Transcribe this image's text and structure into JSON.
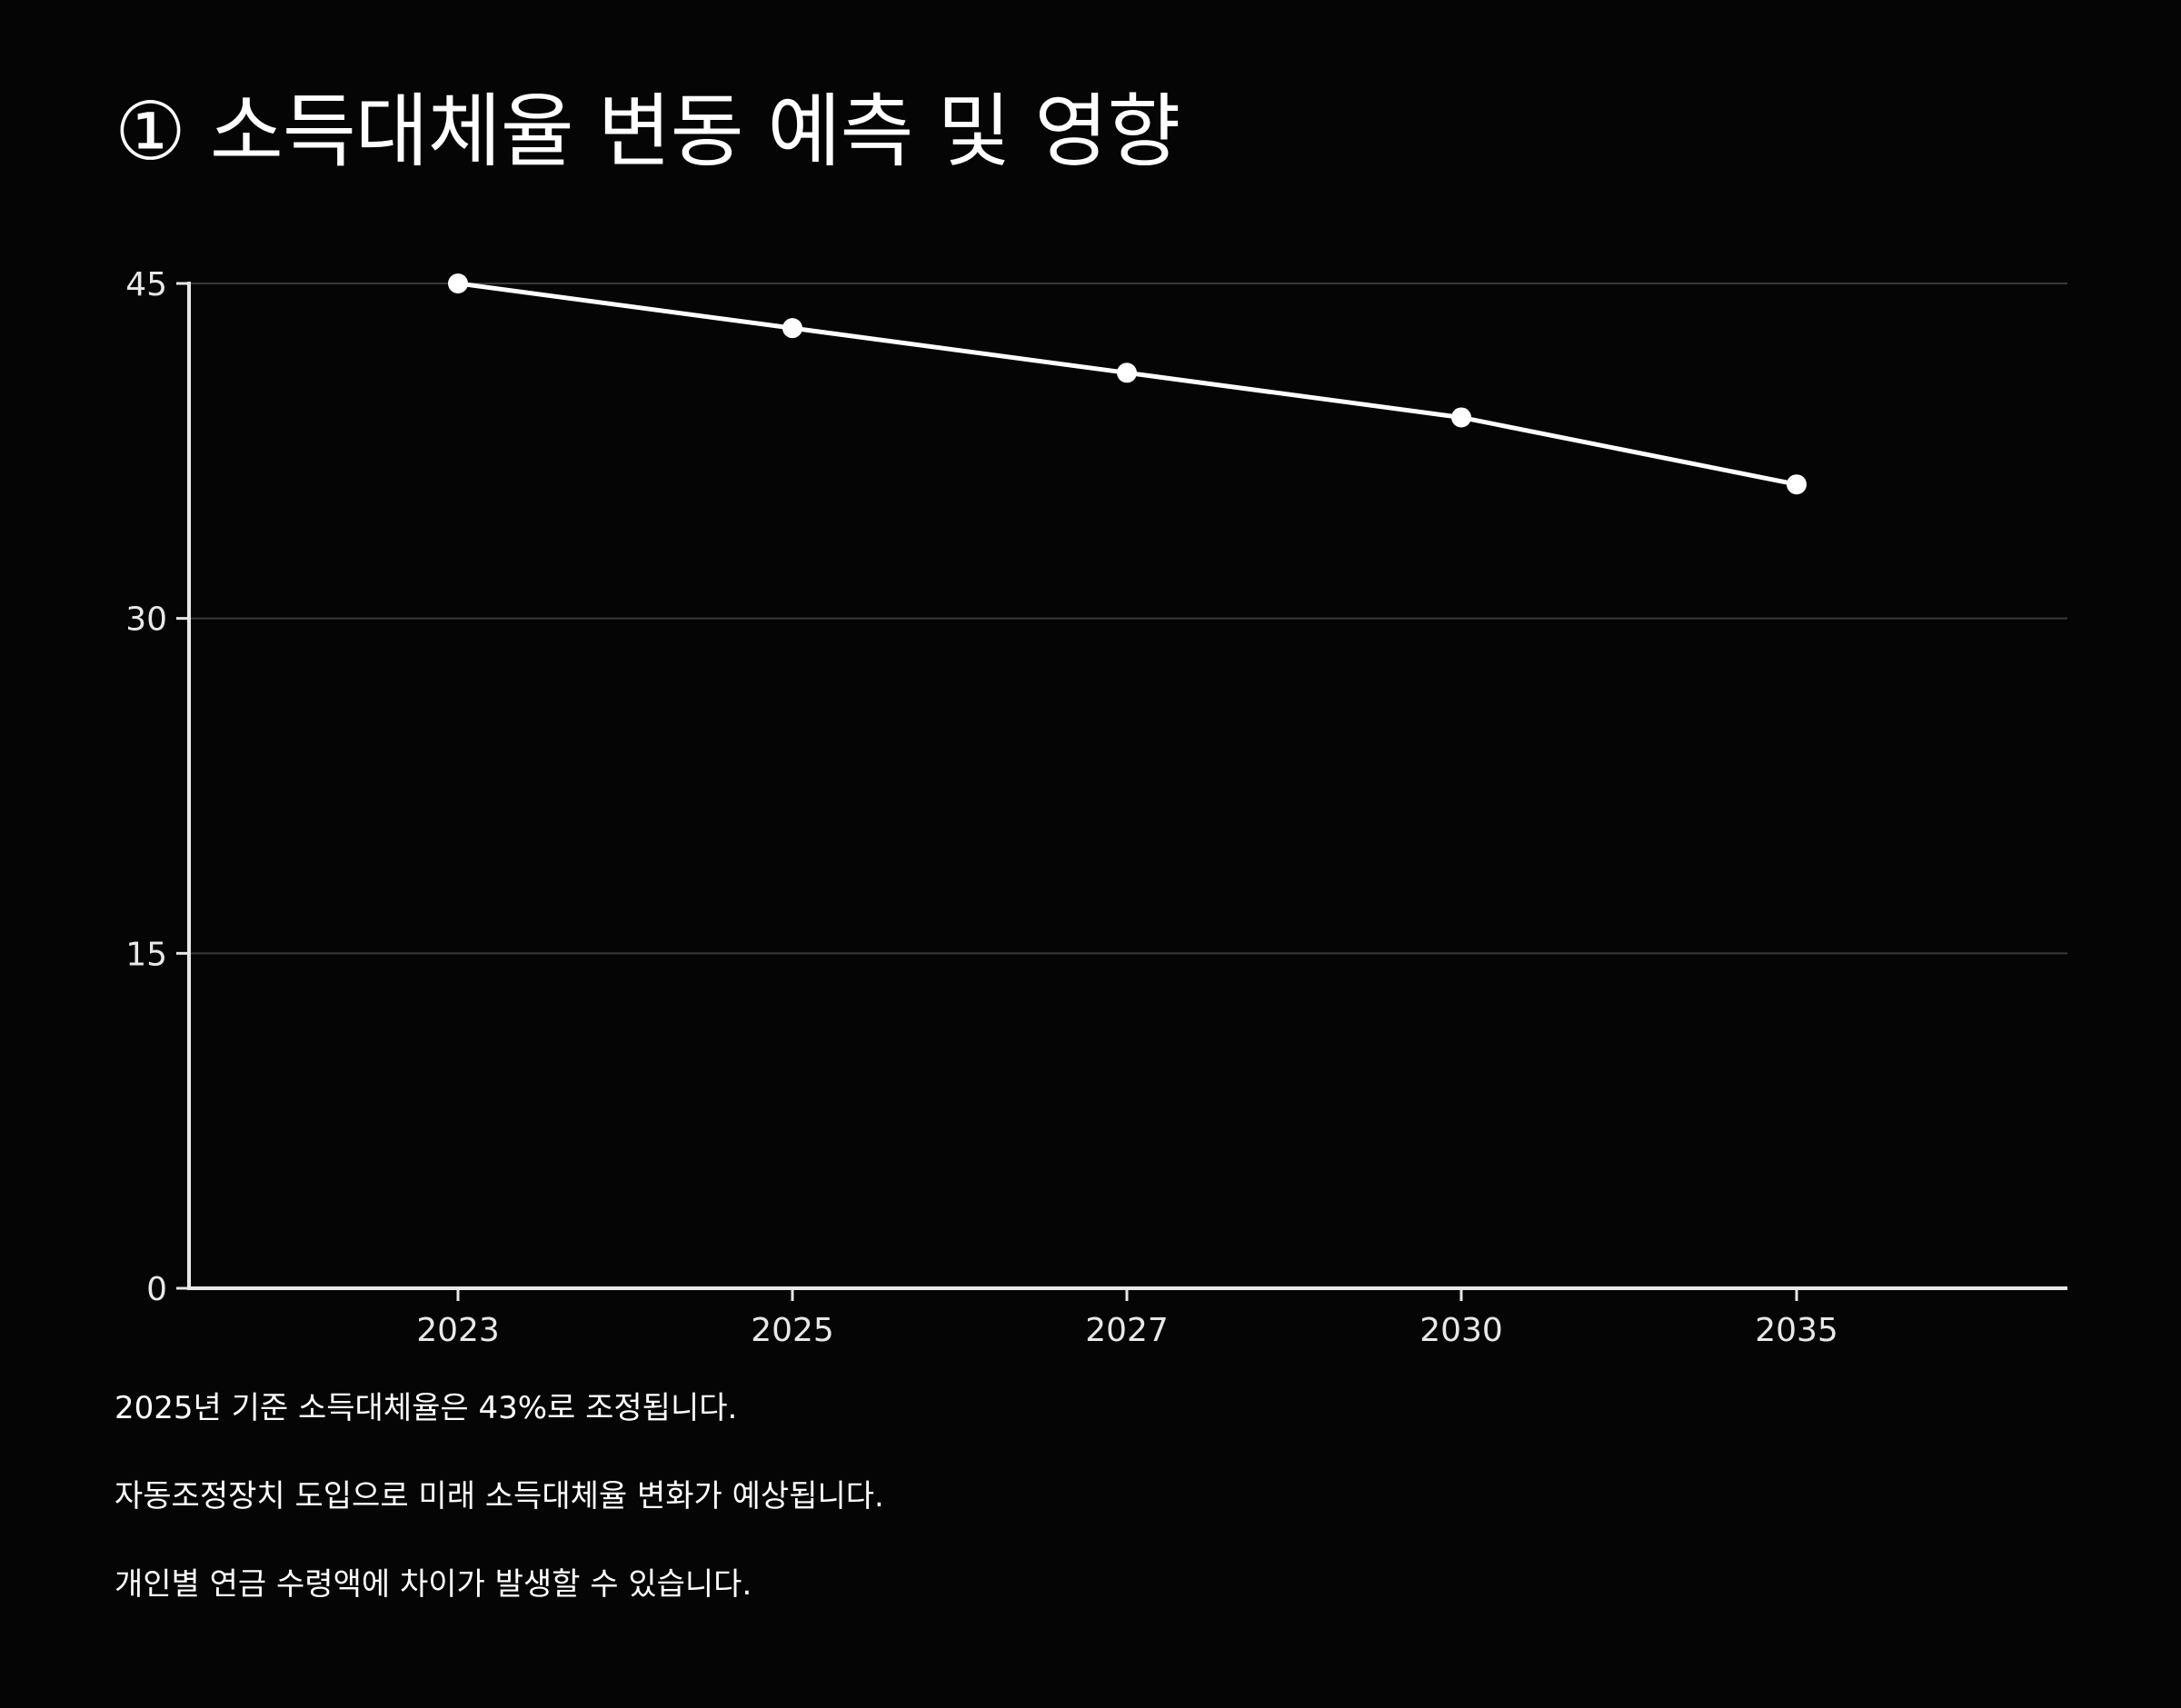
{
  "title": "① 소득대체율 변동 예측 및 영향",
  "chart_data": {
    "type": "line",
    "title": "① 소득대체율 변동 예측 및 영향",
    "xlabel": "",
    "ylabel": "",
    "categories": [
      "2023",
      "2025",
      "2027",
      "2030",
      "2035"
    ],
    "series": [
      {
        "values": [
          45,
          43,
          41,
          39,
          36
        ]
      }
    ],
    "ylim": [
      0,
      45
    ],
    "yticks": [
      0,
      15,
      30,
      45
    ],
    "grid": true,
    "legend": "none",
    "colors": {
      "line": "#ffffff",
      "grid": "#3a3a3a",
      "axis": "#e8e8e8",
      "background": "#050505"
    }
  },
  "notes": [
    "2025년 기준 소득대체율은 43%로 조정됩니다.",
    "자동조정장치 도입으로 미래 소득대체율 변화가 예상됩니다.",
    "개인별 연금 수령액에 차이가 발생할 수 있습니다."
  ]
}
